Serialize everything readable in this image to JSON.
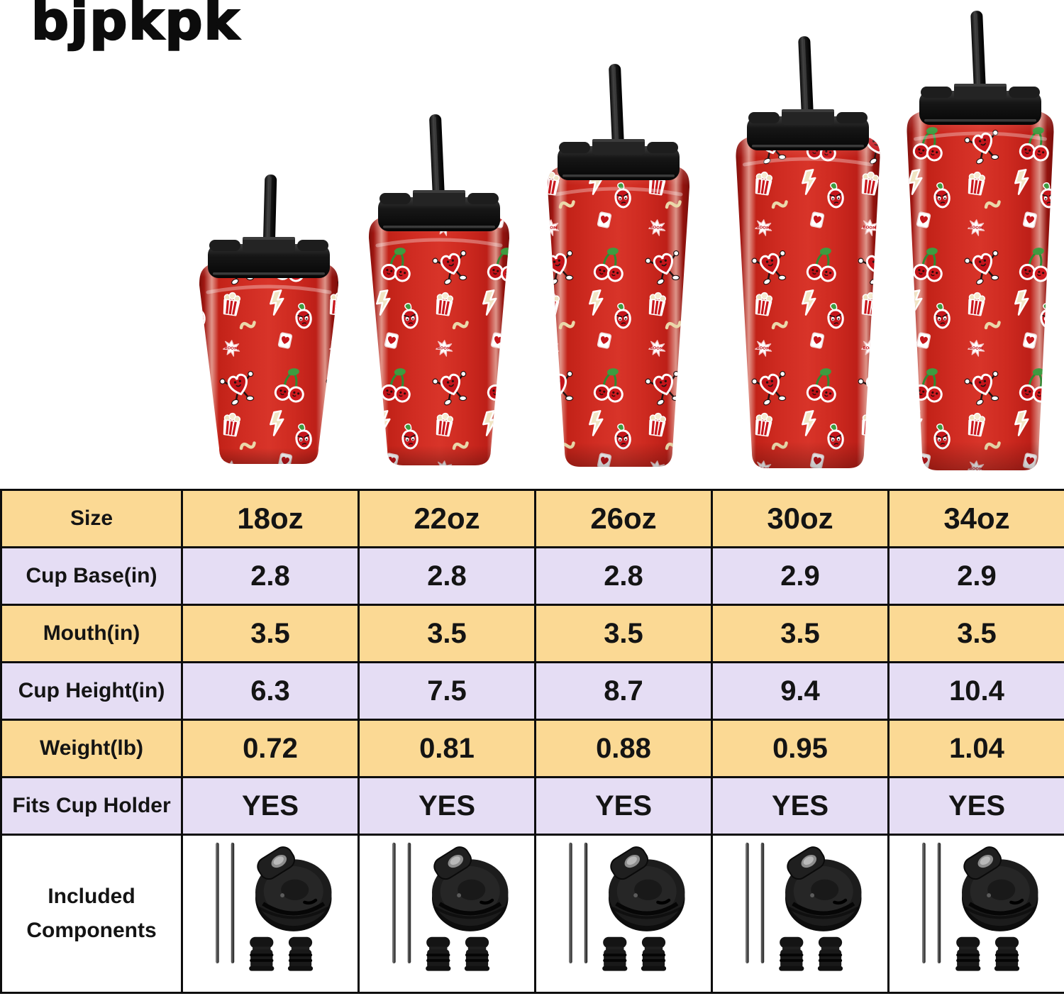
{
  "brand": {
    "logo_text": "bjpkpk"
  },
  "colors": {
    "cup_red": "#CE2B21",
    "cup_red_dark": "#7F100C",
    "lid_black": "#1B1B1B",
    "sticker_green": "#3E9B40",
    "sticker_cream": "#F0E4C3",
    "row_yellow": "#FBD994",
    "row_lavender": "#E5DDF4",
    "table_border": "#0D0D0D",
    "text_black": "#141414",
    "background": "#FFFFFF"
  },
  "products": [
    {
      "size_label": "18oz"
    },
    {
      "size_label": "22oz"
    },
    {
      "size_label": "26oz"
    },
    {
      "size_label": "30oz"
    },
    {
      "size_label": "34oz"
    }
  ],
  "table": {
    "rows": [
      {
        "label": "Size",
        "values": [
          "18oz",
          "22oz",
          "26oz",
          "30oz",
          "34oz"
        ]
      },
      {
        "label": "Cup Base(in)",
        "values": [
          "2.8",
          "2.8",
          "2.8",
          "2.9",
          "2.9"
        ]
      },
      {
        "label": "Mouth(in)",
        "values": [
          "3.5",
          "3.5",
          "3.5",
          "3.5",
          "3.5"
        ]
      },
      {
        "label": "Cup Height(in)",
        "values": [
          "6.3",
          "7.5",
          "8.7",
          "9.4",
          "10.4"
        ]
      },
      {
        "label": "Weight(lb)",
        "values": [
          "0.72",
          "0.81",
          "0.88",
          "0.95",
          "1.04"
        ]
      },
      {
        "label": "Fits Cup Holder",
        "values": [
          "YES",
          "YES",
          "YES",
          "YES",
          "YES"
        ]
      },
      {
        "label": "Included Components",
        "components": [
          {
            "icon": "straws-icon",
            "count": 2
          },
          {
            "icon": "flip-lid-icon",
            "count": 1
          },
          {
            "icon": "straw-stopper-icon",
            "count": 2
          }
        ]
      }
    ]
  }
}
